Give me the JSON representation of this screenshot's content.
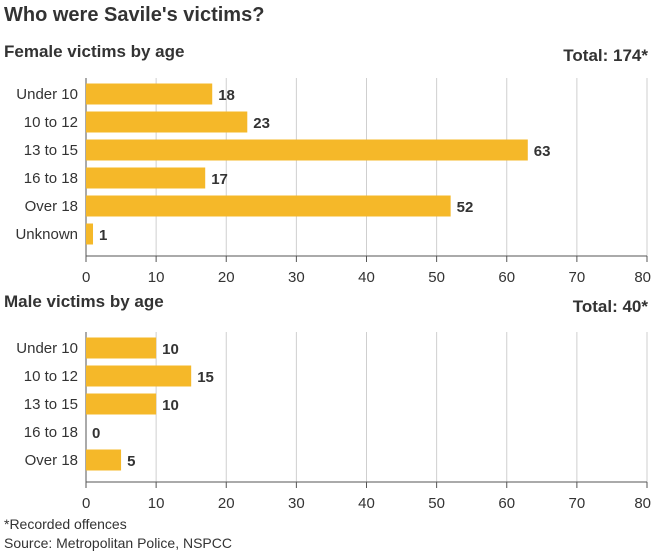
{
  "title": "Who were Savile's victims?",
  "footnote": "*Recorded offences",
  "source": "Source: Metropolitan Police, NSPCC",
  "colors": {
    "bar": "#f5b829",
    "grid": "#cfcfcf",
    "axis": "#555555",
    "text": "#333333"
  },
  "chart_data": [
    {
      "type": "bar",
      "orientation": "horizontal",
      "title": "Female victims by age",
      "total_label": "Total: 174*",
      "categories": [
        "Under 10",
        "10 to 12",
        "13 to 15",
        "16 to 18",
        "Over 18",
        "Unknown"
      ],
      "values": [
        18,
        23,
        63,
        17,
        52,
        1
      ],
      "xlim": [
        0,
        80
      ],
      "xticks": [
        0,
        10,
        20,
        30,
        40,
        50,
        60,
        70,
        80
      ],
      "grid": true
    },
    {
      "type": "bar",
      "orientation": "horizontal",
      "title": "Male victims by age",
      "total_label": "Total: 40*",
      "categories": [
        "Under 10",
        "10 to 12",
        "13 to 15",
        "16 to 18",
        "Over 18"
      ],
      "values": [
        10,
        15,
        10,
        0,
        5
      ],
      "xlim": [
        0,
        80
      ],
      "xticks": [
        0,
        10,
        20,
        30,
        40,
        50,
        60,
        70,
        80
      ],
      "grid": true
    }
  ]
}
